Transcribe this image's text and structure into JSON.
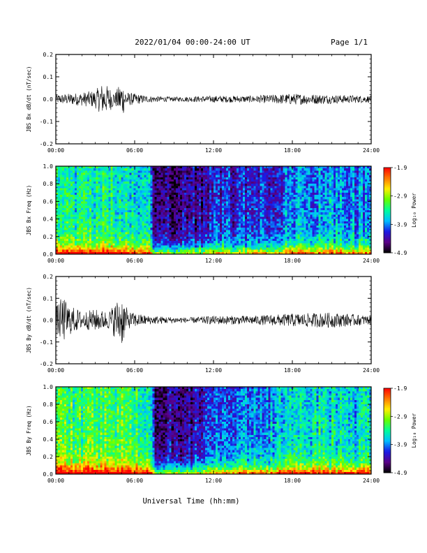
{
  "header": {
    "title": "2022/01/04  00:00-24:00 UT",
    "page": "Page 1/1"
  },
  "xlabel": "Universal Time (hh:mm)",
  "colors": {
    "trace": "#000000",
    "colormap": [
      "#000000",
      "#5a0087",
      "#1a1ae6",
      "#00bfff",
      "#00ff99",
      "#66ff00",
      "#ffee00",
      "#ff7700",
      "#ff0000"
    ]
  },
  "chart_data": [
    {
      "type": "line",
      "panel": "bx-timeseries",
      "ylabel": "JBS Bx dB/dt (nT/sec)",
      "xlim": [
        0,
        24
      ],
      "ylim": [
        -0.2,
        0.2
      ],
      "x_ticks": [
        "00:00",
        "06:00",
        "12:00",
        "18:00",
        "24:00"
      ],
      "y_ticks": [
        "0.2",
        "0.1",
        "0.0",
        "-0.1",
        "-0.2"
      ],
      "envelope": [
        {
          "x": 0.0,
          "amp": 0.02
        },
        {
          "x": 1.0,
          "amp": 0.025
        },
        {
          "x": 2.0,
          "amp": 0.03
        },
        {
          "x": 3.0,
          "amp": 0.04
        },
        {
          "x": 3.5,
          "amp": 0.07
        },
        {
          "x": 4.0,
          "amp": 0.06
        },
        {
          "x": 4.5,
          "amp": 0.03
        },
        {
          "x": 5.0,
          "amp": 0.08
        },
        {
          "x": 5.5,
          "amp": 0.03
        },
        {
          "x": 7.0,
          "amp": 0.015
        },
        {
          "x": 9.0,
          "amp": 0.01
        },
        {
          "x": 12.0,
          "amp": 0.015
        },
        {
          "x": 15.0,
          "amp": 0.015
        },
        {
          "x": 18.0,
          "amp": 0.025
        },
        {
          "x": 21.0,
          "amp": 0.02
        },
        {
          "x": 24.0,
          "amp": 0.015
        }
      ]
    },
    {
      "type": "heatmap",
      "panel": "bx-spectrogram",
      "ylabel": "JBS Bx Freq (Hz)",
      "colorbar_label": "Log₁₀ Power",
      "colorbar_ticks": [
        "-1.9",
        "-2.9",
        "-3.9",
        "-4.9"
      ],
      "zlim": [
        -4.9,
        -1.9
      ],
      "xlim": [
        0,
        24
      ],
      "ylim": [
        0,
        1.0
      ],
      "x_ticks": [
        "00:00",
        "06:00",
        "12:00",
        "18:00",
        "24:00"
      ],
      "y_ticks": [
        "1.0",
        "0.8",
        "0.6",
        "0.4",
        "0.2",
        "0.0"
      ],
      "activity": [
        {
          "x": 0.0,
          "level": -3.6
        },
        {
          "x": 2.0,
          "level": -3.5
        },
        {
          "x": 4.0,
          "level": -3.4
        },
        {
          "x": 6.0,
          "level": -3.6
        },
        {
          "x": 7.2,
          "level": -3.7
        },
        {
          "x": 7.5,
          "level": -4.6
        },
        {
          "x": 11.0,
          "level": -4.5
        },
        {
          "x": 12.0,
          "level": -4.2
        },
        {
          "x": 15.0,
          "level": -4.3
        },
        {
          "x": 18.5,
          "level": -3.9
        },
        {
          "x": 20.0,
          "level": -3.9
        },
        {
          "x": 24.0,
          "level": -4.0
        }
      ]
    },
    {
      "type": "line",
      "panel": "by-timeseries",
      "ylabel": "JBS By dB/dt (nT/sec)",
      "xlim": [
        0,
        24
      ],
      "ylim": [
        -0.2,
        0.2
      ],
      "x_ticks": [
        "00:00",
        "06:00",
        "12:00",
        "18:00",
        "24:00"
      ],
      "y_ticks": [
        "0.2",
        "0.1",
        "0.0",
        "-0.1",
        "-0.2"
      ],
      "envelope": [
        {
          "x": 0.0,
          "amp": 0.06
        },
        {
          "x": 0.5,
          "amp": 0.11
        },
        {
          "x": 1.0,
          "amp": 0.07
        },
        {
          "x": 2.0,
          "amp": 0.04
        },
        {
          "x": 3.0,
          "amp": 0.05
        },
        {
          "x": 4.0,
          "amp": 0.04
        },
        {
          "x": 5.0,
          "amp": 0.12
        },
        {
          "x": 5.5,
          "amp": 0.04
        },
        {
          "x": 7.0,
          "amp": 0.02
        },
        {
          "x": 10.0,
          "amp": 0.012
        },
        {
          "x": 12.0,
          "amp": 0.02
        },
        {
          "x": 15.0,
          "amp": 0.02
        },
        {
          "x": 18.0,
          "amp": 0.03
        },
        {
          "x": 21.0,
          "amp": 0.035
        },
        {
          "x": 24.0,
          "amp": 0.02
        }
      ]
    },
    {
      "type": "heatmap",
      "panel": "by-spectrogram",
      "ylabel": "JBS By Freq (Hz)",
      "colorbar_label": "Log₁₀ Power",
      "colorbar_ticks": [
        "-1.9",
        "-2.9",
        "-3.9",
        "-4.9"
      ],
      "zlim": [
        -4.9,
        -1.9
      ],
      "xlim": [
        0,
        24
      ],
      "ylim": [
        0,
        1.0
      ],
      "x_ticks": [
        "00:00",
        "06:00",
        "12:00",
        "18:00",
        "24:00"
      ],
      "y_ticks": [
        "1.0",
        "0.8",
        "0.6",
        "0.4",
        "0.2",
        "0.0"
      ],
      "activity": [
        {
          "x": 0.0,
          "level": -3.3
        },
        {
          "x": 2.0,
          "level": -3.3
        },
        {
          "x": 4.0,
          "level": -3.2
        },
        {
          "x": 6.0,
          "level": -3.4
        },
        {
          "x": 7.2,
          "level": -3.6
        },
        {
          "x": 7.5,
          "level": -4.5
        },
        {
          "x": 11.0,
          "level": -4.4
        },
        {
          "x": 12.0,
          "level": -4.0
        },
        {
          "x": 15.0,
          "level": -4.0
        },
        {
          "x": 18.5,
          "level": -3.7
        },
        {
          "x": 20.0,
          "level": -3.6
        },
        {
          "x": 24.0,
          "level": -3.7
        }
      ]
    }
  ]
}
